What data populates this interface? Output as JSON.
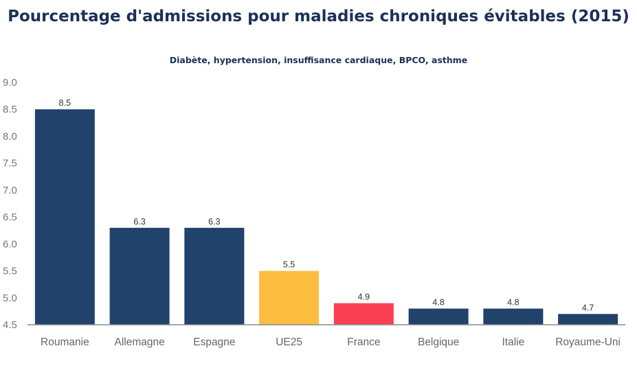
{
  "chart_data": {
    "type": "bar",
    "title": "Pourcentage d'admissions pour maladies chroniques évitables (2015)",
    "subtitle": "Diabète, hypertension, insuffisance cardiaque, BPCO, asthme",
    "categories": [
      "Roumanie",
      "Allemagne",
      "Espagne",
      "UE25",
      "France",
      "Belgique",
      "Italie",
      "Royaume-Uni"
    ],
    "values": [
      8.5,
      6.3,
      6.3,
      5.5,
      4.9,
      4.8,
      4.8,
      4.7
    ],
    "data_labels": [
      "8.5",
      "6.3",
      "6.3",
      "5.5",
      "4.9",
      "4.8",
      "4.8",
      "4.7"
    ],
    "bar_colors": [
      "#21426b",
      "#21426b",
      "#21426b",
      "#fdbd40",
      "#fb3f52",
      "#21426b",
      "#21426b",
      "#21426b"
    ],
    "ylim": [
      4.5,
      9.0
    ],
    "yticks": [
      "9.0",
      "8.5",
      "8.0",
      "7.5",
      "7.0",
      "6.5",
      "6.0",
      "5.5",
      "5.0",
      "4.5"
    ],
    "ytick_values": [
      9.0,
      8.5,
      8.0,
      7.5,
      7.0,
      6.5,
      6.0,
      5.5,
      5.0,
      4.5
    ],
    "xlabel": "",
    "ylabel": "",
    "grid": false,
    "legend": "none"
  }
}
